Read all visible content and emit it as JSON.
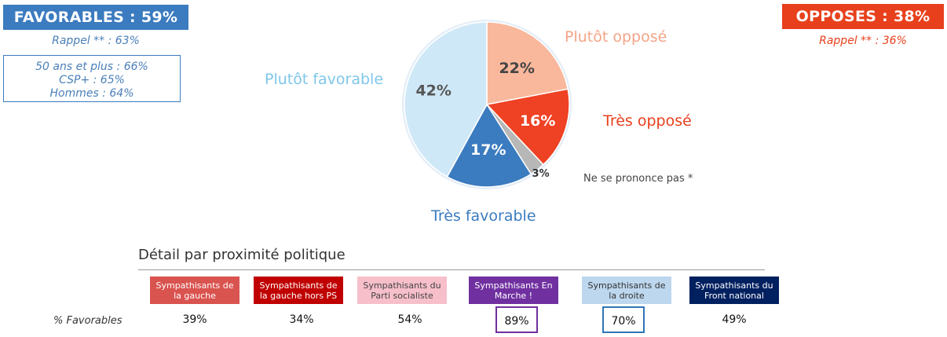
{
  "favorables": {
    "badge": "FAVORABLES : 59%",
    "rappel": "Rappel ** : 63%",
    "details": [
      "50 ans et plus : 66%",
      "CSP+ : 65%",
      "Hommes : 64%"
    ]
  },
  "opposes": {
    "badge": "OPPOSES : 38%",
    "rappel": "Rappel ** : 36%"
  },
  "chart_data": {
    "type": "pie",
    "title": "",
    "slices": [
      {
        "label": "Plutôt opposé",
        "value": 22,
        "display": "22%",
        "color": "#f9b89c",
        "text_color": "#444444"
      },
      {
        "label": "Très opposé",
        "value": 16,
        "display": "16%",
        "color": "#ef4123",
        "text_color": "#ffffff"
      },
      {
        "label": "Ne se prononce pas *",
        "value": 3,
        "display": "3%",
        "color": "#b7b7b7",
        "text_color": "#333333"
      },
      {
        "label": "Très favorable",
        "value": 17,
        "display": "17%",
        "color": "#3b7bbf",
        "text_color": "#ffffff"
      },
      {
        "label": "Plutôt favorable",
        "value": 42,
        "display": "42%",
        "color": "#cfe8f8",
        "text_color": "#555555"
      }
    ]
  },
  "detail": {
    "title": "Détail par proximité politique",
    "row_label": "% Favorables",
    "parties": [
      {
        "label": "Sympathisants de la gauche",
        "value": "39%"
      },
      {
        "label": "Sympathisants de la gauche hors PS",
        "value": "34%"
      },
      {
        "label": "Sympathisants du Parti socialiste",
        "value": "54%"
      },
      {
        "label": "Sympathisants En Marche !",
        "value": "89%"
      },
      {
        "label": "Sympathisants de la droite",
        "value": "70%"
      },
      {
        "label": "Sympathisants du Front national",
        "value": "49%"
      }
    ]
  }
}
